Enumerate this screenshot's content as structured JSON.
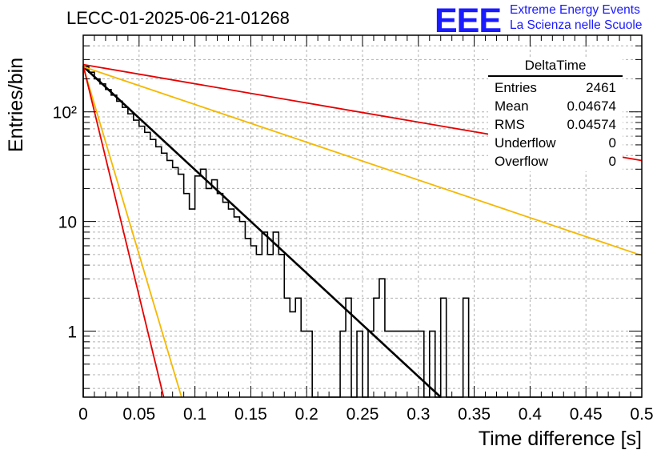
{
  "header": {
    "title": "LECC-01-2025-06-21-01268",
    "logo": "EEE",
    "logo_line1": "Extreme Energy Events",
    "logo_line2": "La Scienza nelle Scuole"
  },
  "stats": {
    "name": "DeltaTime",
    "rows": [
      {
        "label": "Entries",
        "value": "2461"
      },
      {
        "label": "Mean",
        "value": "0.04674"
      },
      {
        "label": "RMS",
        "value": "0.04574"
      },
      {
        "label": "Underflow",
        "value": "0"
      },
      {
        "label": "Overflow",
        "value": "0"
      }
    ]
  },
  "chart_data": {
    "type": "histogram",
    "xlabel": "Time difference [s]",
    "ylabel": "Entries/bin",
    "xlim": [
      0,
      0.5
    ],
    "ylim": [
      0.25,
      500
    ],
    "log_y": true,
    "grid": true,
    "x_ticks": [
      "0",
      "0.05",
      "0.1",
      "0.15",
      "0.2",
      "0.25",
      "0.3",
      "0.35",
      "0.4",
      "0.45",
      "0.5"
    ],
    "y_ticks": [
      "1",
      "10",
      "10²"
    ],
    "bin_width": 0.005,
    "histogram_values": [
      258,
      230,
      200,
      180,
      160,
      142,
      125,
      110,
      96,
      84,
      74,
      65,
      56,
      48,
      42,
      36,
      31,
      27,
      18,
      13,
      26,
      30,
      20,
      24,
      18,
      15,
      13,
      11,
      10,
      7,
      6,
      5,
      8,
      5,
      8,
      5,
      2,
      1.5,
      2,
      1,
      1,
      0.01,
      0.01,
      0.01,
      0.01,
      0.01,
      1,
      2,
      0.01,
      1,
      0.01,
      1,
      2,
      3,
      1,
      1,
      1,
      1,
      1,
      1,
      1,
      0.01,
      1,
      0.01,
      2,
      0.01,
      0.01,
      0.01,
      2,
      0.01,
      0.01,
      0.01,
      0.01,
      0.01,
      0.01,
      0.01,
      0.01,
      0.01,
      0.01,
      0.01,
      0.01,
      0.01,
      0.01,
      0.01,
      0.01,
      0.01,
      0.01,
      0.01,
      0.01,
      0.01,
      0.01,
      0.01,
      0.01,
      0.01,
      0.01,
      0.01,
      0.01,
      0.01,
      0.01,
      0.01
    ],
    "fit_lines": [
      {
        "color": "#000000",
        "x": [
          0,
          0.32
        ],
        "y": [
          260,
          0.25
        ]
      },
      {
        "color": "#e60000",
        "x": [
          0,
          0.5
        ],
        "y": [
          270,
          36
        ]
      },
      {
        "color": "#f5b800",
        "x": [
          0,
          0.5
        ],
        "y": [
          258,
          4.9
        ]
      },
      {
        "color": "#f5b800",
        "x": [
          0,
          0.088
        ],
        "y": [
          258,
          0.25
        ]
      },
      {
        "color": "#e60000",
        "x": [
          0,
          0.072
        ],
        "y": [
          265,
          0.25
        ]
      }
    ]
  }
}
